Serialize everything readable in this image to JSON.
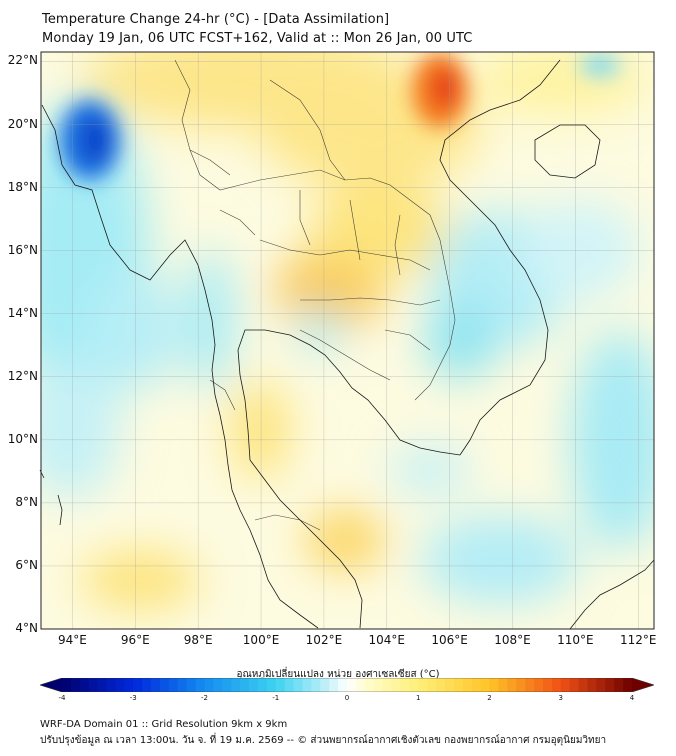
{
  "title_line1": "Temperature Change 24-hr (°C) - [Data Assimilation]",
  "title_line2": "Monday 19 Jan, 06 UTC FCST+162, Valid at :: Mon 26 Jan, 00 UTC",
  "map": {
    "extent": {
      "lon_min": 93,
      "lon_max": 112.5,
      "lat_min": 4,
      "lat_max": 22.3
    },
    "lat_labels": [
      "4°N",
      "6°N",
      "8°N",
      "10°N",
      "12°N",
      "14°N",
      "16°N",
      "18°N",
      "20°N",
      "22°N"
    ],
    "lon_labels": [
      "94°E",
      "96°E",
      "98°E",
      "100°E",
      "102°E",
      "104°E",
      "106°E",
      "108°E",
      "110°E",
      "112°E"
    ],
    "features": [
      {
        "name": "warm-red",
        "lon": 105.8,
        "lat": 20.8,
        "v": 3.0
      },
      {
        "name": "cool-blue",
        "lon": 94.8,
        "lat": 19.4,
        "v": -2.6
      },
      {
        "name": "warm-north-thailand",
        "lon": 101.5,
        "lat": 18.5,
        "v": 1.2
      },
      {
        "name": "warm-central",
        "lon": 102.2,
        "lat": 15.0,
        "v": 1.5
      },
      {
        "name": "warm-isan",
        "lon": 103.6,
        "lat": 16.5,
        "v": 1.1
      },
      {
        "name": "warm-gulf",
        "lon": 102.3,
        "lat": 7.0,
        "v": 1.3
      },
      {
        "name": "cool-andaman",
        "lon": 97.0,
        "lat": 15.0,
        "v": -1.1
      },
      {
        "name": "cool-vietnam",
        "lon": 108.5,
        "lat": 15.5,
        "v": -0.9
      },
      {
        "name": "cool-east",
        "lon": 111.5,
        "lat": 9.0,
        "v": -1.2
      },
      {
        "name": "cool-south",
        "lon": 107.5,
        "lat": 5.3,
        "v": -1.0
      }
    ]
  },
  "colorbar": {
    "title": "อุณหภูมิเปลี่ยนแปลง หน่วย องศาเซลเซียส (°C)",
    "ticks": [
      "-4",
      "-3",
      "-2",
      "-1",
      "0",
      "1",
      "2",
      "3",
      "4"
    ],
    "min": -4,
    "max": 4
  },
  "footer_line1": "WRF-DA Domain 01 :: Grid Resolution 9km x 9km",
  "footer_line2": "ปรับปรุงข้อมูล ณ เวลา 13:00น. วัน จ. ที่ 19 ม.ค. 2569 -- © ส่วนพยากรณ์อากาศเชิงตัวเลข กองพยากรณ์อากาศ กรมอุตุนิยมวิทยา"
}
